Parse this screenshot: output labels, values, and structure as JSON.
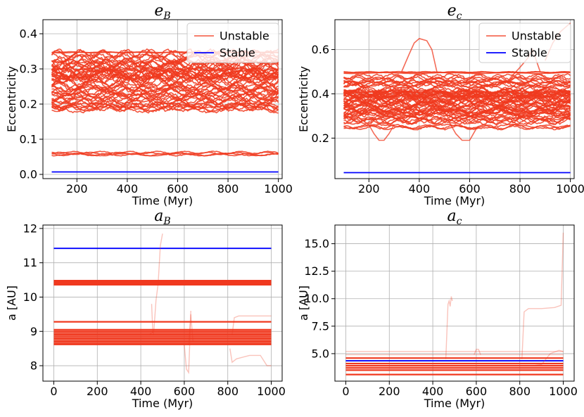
{
  "chart_data": [
    {
      "id": "eB",
      "type": "line",
      "title": "e",
      "title_sub": "B",
      "xlabel": "Time (Myr)",
      "ylabel": "Eccentricity",
      "xlim": [
        65,
        1015
      ],
      "ylim": [
        -0.012,
        0.44
      ],
      "xticks": [
        200,
        400,
        600,
        800,
        1000
      ],
      "yticks": [
        0.0,
        0.1,
        0.2,
        0.3,
        0.4
      ],
      "ytick_labels": [
        "0.0",
        "0.1",
        "0.2",
        "0.3",
        "0.4"
      ],
      "grid": true,
      "legend": {
        "placement": "top-right",
        "entries": [
          "Unstable",
          "Stable"
        ]
      },
      "series": [
        {
          "name": "Unstable",
          "color": "#f0391f",
          "x_range": [
            100,
            1000
          ],
          "bands": [
            {
              "center": 0.06,
              "spread": 0.004,
              "lines": 4,
              "osc": 0.003
            },
            {
              "center": 0.185,
              "spread": 0.012,
              "lines": 4,
              "osc": 0.006
            },
            {
              "center": 0.205,
              "spread": 0.02,
              "lines": 8,
              "osc": 0.01
            },
            {
              "center": 0.23,
              "spread": 0.02,
              "lines": 10,
              "osc": 0.01
            },
            {
              "center": 0.265,
              "spread": 0.025,
              "lines": 10,
              "osc": 0.012
            },
            {
              "center": 0.295,
              "spread": 0.025,
              "lines": 12,
              "osc": 0.012
            },
            {
              "center": 0.325,
              "spread": 0.02,
              "lines": 10,
              "osc": 0.01
            },
            {
              "center": 0.348,
              "spread": 0.002,
              "lines": 2,
              "osc": 0.001
            }
          ]
        },
        {
          "name": "Stable",
          "color": "#0000ff",
          "x": [
            100,
            1000
          ],
          "y": [
            0.007,
            0.007
          ]
        }
      ]
    },
    {
      "id": "ec",
      "type": "line",
      "title": "e",
      "title_sub": "c",
      "xlabel": "Time (Myr)",
      "ylabel": "Eccentricity",
      "xlim": [
        65,
        1015
      ],
      "ylim": [
        0.017,
        0.735
      ],
      "xticks": [
        200,
        400,
        600,
        800,
        1000
      ],
      "yticks": [
        0.2,
        0.4,
        0.6
      ],
      "ytick_labels": [
        "0.2",
        "0.4",
        "0.6"
      ],
      "grid": true,
      "legend": {
        "placement": "top-right",
        "entries": [
          "Unstable",
          "Stable"
        ]
      },
      "series": [
        {
          "name": "Unstable",
          "color": "#f0391f",
          "x_range": [
            100,
            1000
          ],
          "bands": [
            {
              "center": 0.25,
              "spread": 0.006,
              "lines": 3,
              "osc": 0.008
            },
            {
              "center": 0.3,
              "spread": 0.025,
              "lines": 10,
              "osc": 0.012
            },
            {
              "center": 0.34,
              "spread": 0.03,
              "lines": 14,
              "osc": 0.015
            },
            {
              "center": 0.38,
              "spread": 0.03,
              "lines": 14,
              "osc": 0.015
            },
            {
              "center": 0.42,
              "spread": 0.025,
              "lines": 12,
              "osc": 0.013
            },
            {
              "center": 0.46,
              "spread": 0.02,
              "lines": 8,
              "osc": 0.01
            },
            {
              "center": 0.495,
              "spread": 0.004,
              "lines": 3,
              "osc": 0.002
            }
          ],
          "excursions": [
            {
              "x": [
                330,
                360,
                380,
                400,
                430,
                450,
                470
              ],
              "y": [
                0.5,
                0.58,
                0.63,
                0.65,
                0.64,
                0.6,
                0.5
              ]
            },
            {
              "x": [
                200,
                220,
                240,
                260,
                280,
                300
              ],
              "y": [
                0.26,
                0.22,
                0.19,
                0.19,
                0.22,
                0.26
              ]
            },
            {
              "x": [
                520,
                545,
                570,
                600,
                630
              ],
              "y": [
                0.27,
                0.22,
                0.19,
                0.19,
                0.25
              ]
            },
            {
              "x": [
                760,
                800,
                830,
                850,
                880
              ],
              "y": [
                0.47,
                0.52,
                0.56,
                0.6,
                0.5
              ]
            },
            {
              "x": [
                900,
                930,
                960,
                1000
              ],
              "y": [
                0.55,
                0.63,
                0.68,
                0.72
              ]
            }
          ]
        },
        {
          "name": "Stable",
          "color": "#0000ff",
          "x": [
            100,
            1000
          ],
          "y": [
            0.044,
            0.044
          ]
        }
      ]
    },
    {
      "id": "aB",
      "type": "line",
      "title": "a",
      "title_sub": "B",
      "xlabel": "Time (Myr)",
      "ylabel": "a [AU]",
      "xlim": [
        -50,
        1050
      ],
      "ylim": [
        7.55,
        12.1
      ],
      "xticks": [
        0,
        200,
        400,
        600,
        800,
        1000
      ],
      "yticks": [
        8,
        9,
        10,
        11,
        12
      ],
      "ytick_labels": [
        "8",
        "9",
        "10",
        "11",
        "12"
      ],
      "grid": true,
      "series": [
        {
          "name": "Stable",
          "color": "#0000ff",
          "x": [
            0,
            1000
          ],
          "y": [
            11.42,
            11.42
          ]
        },
        {
          "name": "Unstable",
          "color": "#f0391f",
          "levels": [
            10.36,
            10.4,
            10.44,
            10.48,
            9.28,
            9.05,
            9.0,
            8.95,
            8.9,
            8.85,
            8.8,
            8.75,
            8.7,
            8.65,
            8.62
          ],
          "faint": [
            {
              "x": [
                440,
                460,
                470,
                480,
                490,
                500
              ],
              "y": [
                8.9,
                9.0,
                9.9,
                10.4,
                11.5,
                11.85
              ]
            },
            {
              "x": [
                450,
                455,
                460
              ],
              "y": [
                9.8,
                9.0,
                8.9
              ]
            },
            {
              "x": [
                600,
                610,
                620,
                625,
                630
              ],
              "y": [
                8.6,
                7.9,
                7.8,
                8.6,
                9.6
              ]
            },
            {
              "x": [
                620,
                630,
                640
              ],
              "y": [
                8.6,
                9.5,
                8.7
              ]
            },
            {
              "x": [
                810,
                820,
                840,
                900,
                950,
                980,
                1000
              ],
              "y": [
                8.5,
                8.1,
                8.2,
                8.3,
                8.3,
                8.0,
                8.0
              ]
            },
            {
              "x": [
                820,
                830,
                850,
                900,
                950,
                1000
              ],
              "y": [
                8.9,
                9.4,
                9.45,
                9.45,
                9.45,
                9.45
              ]
            }
          ]
        }
      ]
    },
    {
      "id": "ac",
      "type": "line",
      "title": "a",
      "title_sub": "c",
      "xlabel": "Time (Myr)",
      "ylabel": "a [AU]",
      "xlim": [
        -50,
        1050
      ],
      "ylim": [
        2.5,
        16.7
      ],
      "xticks": [
        0,
        200,
        400,
        600,
        800,
        1000
      ],
      "yticks": [
        5.0,
        7.5,
        10.0,
        12.5,
        15.0
      ],
      "ytick_labels": [
        "5.0",
        "7.5",
        "10.0",
        "12.5",
        "15.0"
      ],
      "grid": true,
      "series": [
        {
          "name": "Stable",
          "color": "#0000ff",
          "x": [
            0,
            1000
          ],
          "y": [
            4.35,
            4.35
          ]
        },
        {
          "name": "Unstable",
          "color": "#f0391f",
          "levels": [
            3.1,
            3.5,
            3.7,
            3.9,
            4.1,
            4.6
          ],
          "faint_levels": [
            4.9,
            5.2
          ],
          "faint": [
            {
              "x": [
                460,
                470,
                475,
                480,
                485,
                490
              ],
              "y": [
                4.5,
                9.5,
                9.8,
                9.3,
                10.2,
                9.8
              ]
            },
            {
              "x": [
                590,
                600,
                610,
                620
              ],
              "y": [
                4.9,
                5.4,
                5.4,
                4.9
              ]
            },
            {
              "x": [
                810,
                820,
                840,
                900,
                960,
                990,
                1000
              ],
              "y": [
                4.5,
                8.8,
                9.1,
                9.1,
                9.2,
                9.4,
                16.0
              ]
            },
            {
              "x": [
                860,
                900,
                940,
                980,
                1000
              ],
              "y": [
                3.9,
                4.0,
                5.0,
                5.3,
                5.2
              ]
            }
          ]
        }
      ]
    }
  ]
}
